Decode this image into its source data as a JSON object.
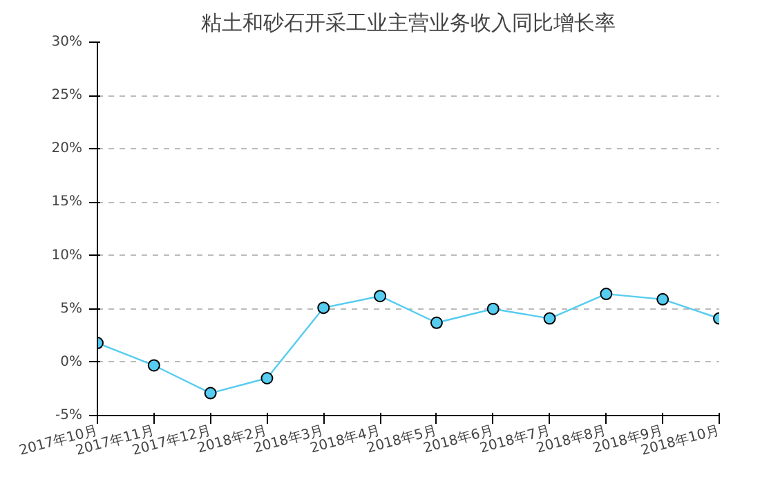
{
  "chart_data": {
    "type": "line",
    "title": "粘土和砂石开采工业主营业务收入同比增长率",
    "categories": [
      "2017年10月",
      "2017年11月",
      "2017年12月",
      "2018年2月",
      "2018年3月",
      "2018年4月",
      "2018年5月",
      "2018年6月",
      "2018年7月",
      "2018年8月",
      "2018年9月",
      "2018年10月"
    ],
    "series": [
      {
        "color": "#55ccf0",
        "values": [
          1.8,
          -0.3,
          -2.9,
          -1.5,
          5.1,
          6.2,
          3.7,
          5.0,
          4.1,
          6.4,
          5.9,
          4.1
        ]
      }
    ],
    "ylim": [
      -5,
      30
    ],
    "yticks": [
      {
        "value": -5,
        "label": "-5%"
      },
      {
        "value": 0,
        "label": "0%"
      },
      {
        "value": 5,
        "label": "5%"
      },
      {
        "value": 10,
        "label": "10%"
      },
      {
        "value": 15,
        "label": "15%"
      },
      {
        "value": 20,
        "label": "20%"
      },
      {
        "value": 25,
        "label": "25%"
      },
      {
        "value": 30,
        "label": "30%"
      }
    ],
    "grid": "y",
    "marker": "circle",
    "line_style": "solid"
  }
}
